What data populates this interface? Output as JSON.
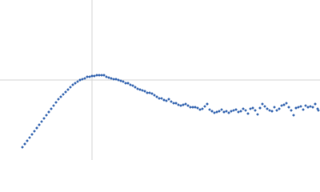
{
  "chart_data": {
    "type": "scatter",
    "color": "#3b6ab3",
    "xlim": [
      0,
      400
    ],
    "ylim": [
      0,
      200
    ],
    "vlines": [
      115
    ],
    "hlines": [
      100
    ],
    "ref_color": "#d6d6d6",
    "x": [
      28,
      31,
      34,
      37,
      40,
      43,
      46,
      49,
      52,
      55,
      58,
      61,
      64,
      67,
      70,
      73,
      76,
      79,
      82,
      85,
      88,
      91,
      94,
      97,
      100,
      103,
      106,
      109,
      112,
      115,
      118,
      121,
      124,
      127,
      130,
      133,
      136,
      139,
      142,
      145,
      148,
      151,
      154,
      157,
      160,
      163,
      166,
      169,
      172,
      175,
      178,
      181,
      184,
      187,
      190,
      193,
      196,
      199,
      202,
      205,
      208,
      211,
      214,
      217,
      220,
      223,
      226,
      229,
      232,
      235,
      238,
      241,
      244,
      247,
      250,
      253,
      256,
      259,
      262,
      265,
      268,
      271,
      274,
      277,
      280,
      283,
      286,
      289,
      292,
      295,
      298,
      301,
      304,
      307,
      310,
      313,
      316,
      319,
      322,
      325,
      328,
      331,
      334,
      337,
      340,
      343,
      346,
      349,
      352,
      355,
      358,
      361,
      364,
      367,
      370,
      373,
      376,
      379,
      382,
      385,
      388,
      391,
      394,
      397,
      398
    ],
    "values": [
      16,
      20,
      24,
      28,
      32,
      36,
      40,
      44,
      48,
      52,
      56,
      60,
      64,
      68,
      72,
      76,
      79,
      82,
      85,
      88,
      91,
      94,
      96,
      98,
      100,
      101,
      102,
      104,
      104,
      105,
      105,
      106,
      106,
      106,
      106,
      104,
      103,
      102,
      101,
      101,
      100,
      99,
      98,
      96,
      96,
      94,
      93,
      91,
      89,
      88,
      87,
      86,
      84,
      84,
      83,
      81,
      79,
      77,
      77,
      75,
      74,
      76,
      73,
      71,
      71,
      69,
      68,
      69,
      70,
      68,
      66,
      66,
      66,
      65,
      63,
      64,
      67,
      70,
      63,
      61,
      59,
      60,
      61,
      63,
      60,
      61,
      59,
      61,
      62,
      63,
      60,
      61,
      64,
      62,
      58,
      64,
      65,
      62,
      57,
      65,
      70,
      67,
      64,
      62,
      61,
      66,
      62,
      64,
      68,
      69,
      71,
      66,
      62,
      56,
      65,
      66,
      67,
      63,
      68,
      66,
      67,
      66,
      70,
      64,
      62
    ]
  }
}
